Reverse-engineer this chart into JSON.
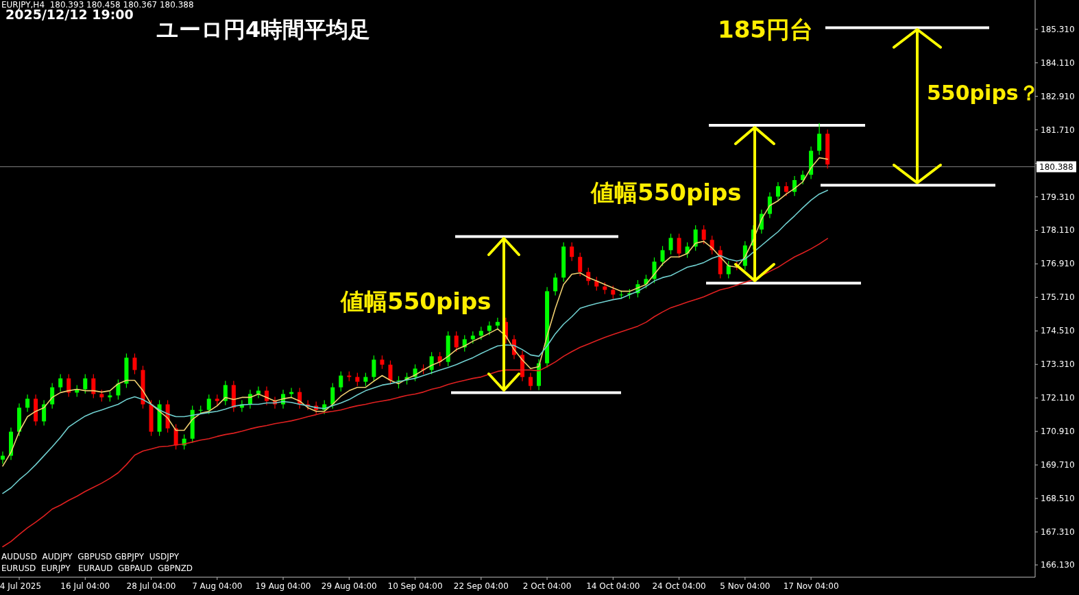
{
  "chart_data": {
    "type": "candlestick",
    "title": "ユーロ円4時間平均足",
    "categories": [
      null,
      null,
      "4 Jul 2025",
      null,
      null,
      null,
      null,
      null,
      null,
      null,
      "16 Jul 04:00",
      null,
      null,
      null,
      null,
      null,
      null,
      null,
      "28 Jul 04:00",
      null,
      null,
      null,
      null,
      null,
      null,
      null,
      "7 Aug 04:00",
      null,
      null,
      null,
      null,
      null,
      null,
      null,
      "19 Aug 04:00",
      null,
      null,
      null,
      null,
      null,
      null,
      null,
      "29 Aug 04:00",
      null,
      null,
      null,
      null,
      null,
      null,
      null,
      "10 Sep 04:00",
      null,
      null,
      null,
      null,
      null,
      null,
      null,
      "22 Sep 04:00",
      null,
      null,
      null,
      null,
      null,
      null,
      null,
      "2 Oct 04:00",
      null,
      null,
      null,
      null,
      null,
      null,
      null,
      "14 Oct 04:00",
      null,
      null,
      null,
      null,
      null,
      null,
      null,
      "24 Oct 04:00",
      null,
      null,
      null,
      null,
      null,
      null,
      null,
      "5 Nov 04:00",
      null,
      null,
      null,
      null,
      null,
      null,
      null,
      "17 Nov 04:00",
      null,
      null,
      null,
      null,
      null,
      null,
      null,
      null,
      null,
      null,
      null,
      null,
      null,
      null,
      null,
      null,
      null,
      null,
      null,
      null,
      null,
      null,
      null,
      null,
      null,
      null
    ],
    "ohlc": [
      [
        169.9,
        170.19,
        169.75,
        170.04
      ],
      [
        170.04,
        171.05,
        169.89,
        170.9
      ],
      [
        170.9,
        171.91,
        170.75,
        171.76
      ],
      [
        171.76,
        172.23,
        171.61,
        172.08
      ],
      [
        172.08,
        172.23,
        171.12,
        171.27
      ],
      [
        171.27,
        172.03,
        171.12,
        171.88
      ],
      [
        171.88,
        172.64,
        171.73,
        172.49
      ],
      [
        172.49,
        172.96,
        172.34,
        172.81
      ],
      [
        172.81,
        172.96,
        172.15,
        172.3
      ],
      [
        172.3,
        172.57,
        172.15,
        172.42
      ],
      [
        172.42,
        172.96,
        172.27,
        172.81
      ],
      [
        172.81,
        172.96,
        172.1,
        172.25
      ],
      [
        172.25,
        172.4,
        171.98,
        172.13
      ],
      [
        172.13,
        172.35,
        171.98,
        172.2
      ],
      [
        172.2,
        172.77,
        172.05,
        172.62
      ],
      [
        172.62,
        173.7,
        172.47,
        173.55
      ],
      [
        173.55,
        173.7,
        172.96,
        173.11
      ],
      [
        173.11,
        173.26,
        171.73,
        171.88
      ],
      [
        171.88,
        172.03,
        170.75,
        170.9
      ],
      [
        170.9,
        172.03,
        170.75,
        171.88
      ],
      [
        171.88,
        172.03,
        170.87,
        171.02
      ],
      [
        171.02,
        171.17,
        170.26,
        170.41
      ],
      [
        170.41,
        170.8,
        170.26,
        170.65
      ],
      [
        170.65,
        171.83,
        170.5,
        171.68
      ],
      [
        171.68,
        171.83,
        171.53,
        171.68
      ],
      [
        171.68,
        172.23,
        171.53,
        172.08
      ],
      [
        172.08,
        172.23,
        171.85,
        172.0
      ],
      [
        172.0,
        172.72,
        171.85,
        172.57
      ],
      [
        172.57,
        172.72,
        171.61,
        171.76
      ],
      [
        171.76,
        172.03,
        171.61,
        171.88
      ],
      [
        171.88,
        172.4,
        171.73,
        172.25
      ],
      [
        172.25,
        172.52,
        172.1,
        172.37
      ],
      [
        172.37,
        172.52,
        171.85,
        172.0
      ],
      [
        172.0,
        172.15,
        171.73,
        171.88
      ],
      [
        171.88,
        172.4,
        171.73,
        172.25
      ],
      [
        172.25,
        172.47,
        172.1,
        172.32
      ],
      [
        172.32,
        172.47,
        171.73,
        171.88
      ],
      [
        171.88,
        172.03,
        171.68,
        171.83
      ],
      [
        171.83,
        171.98,
        171.53,
        171.68
      ],
      [
        171.68,
        172.03,
        171.53,
        171.88
      ],
      [
        171.88,
        172.64,
        171.73,
        172.49
      ],
      [
        172.49,
        173.06,
        172.34,
        172.91
      ],
      [
        172.91,
        173.06,
        172.71,
        172.86
      ],
      [
        172.86,
        173.01,
        172.54,
        172.69
      ],
      [
        172.69,
        173.01,
        172.54,
        172.86
      ],
      [
        172.86,
        173.63,
        172.71,
        173.48
      ],
      [
        173.48,
        173.63,
        173.15,
        173.3
      ],
      [
        173.3,
        173.45,
        172.59,
        172.74
      ],
      [
        172.74,
        172.89,
        172.45,
        172.74
      ],
      [
        172.74,
        173.01,
        172.59,
        172.86
      ],
      [
        172.86,
        173.31,
        172.71,
        173.16
      ],
      [
        173.16,
        173.31,
        172.96,
        173.11
      ],
      [
        173.11,
        173.75,
        172.96,
        173.6
      ],
      [
        173.6,
        173.75,
        173.25,
        173.4
      ],
      [
        173.4,
        174.49,
        173.25,
        174.34
      ],
      [
        174.34,
        174.49,
        173.77,
        173.92
      ],
      [
        173.92,
        174.36,
        173.77,
        174.21
      ],
      [
        174.21,
        174.49,
        174.06,
        174.34
      ],
      [
        174.34,
        174.66,
        174.19,
        174.51
      ],
      [
        174.51,
        174.85,
        174.36,
        174.7
      ],
      [
        174.7,
        174.98,
        174.55,
        174.83
      ],
      [
        174.83,
        174.98,
        174.06,
        174.21
      ],
      [
        174.21,
        174.36,
        173.5,
        173.65
      ],
      [
        173.65,
        173.8,
        172.71,
        172.86
      ],
      [
        172.86,
        173.01,
        172.39,
        172.54
      ],
      [
        172.54,
        173.5,
        172.39,
        173.35
      ],
      [
        173.35,
        176.08,
        173.2,
        175.93
      ],
      [
        175.93,
        176.57,
        175.78,
        176.42
      ],
      [
        176.42,
        177.68,
        176.27,
        177.53
      ],
      [
        177.53,
        177.68,
        177.01,
        177.16
      ],
      [
        177.16,
        177.31,
        176.47,
        176.62
      ],
      [
        176.62,
        176.77,
        176.15,
        176.3
      ],
      [
        176.3,
        176.45,
        175.95,
        176.1
      ],
      [
        176.1,
        176.25,
        175.83,
        175.98
      ],
      [
        175.98,
        176.13,
        175.66,
        175.81
      ],
      [
        175.81,
        175.96,
        175.66,
        175.81
      ],
      [
        175.81,
        176.01,
        175.66,
        175.86
      ],
      [
        175.86,
        176.33,
        175.71,
        176.18
      ],
      [
        176.18,
        176.52,
        176.03,
        176.37
      ],
      [
        176.37,
        177.14,
        176.22,
        176.99
      ],
      [
        176.99,
        177.55,
        176.84,
        177.4
      ],
      [
        177.4,
        177.99,
        177.25,
        177.84
      ],
      [
        177.84,
        177.99,
        177.13,
        177.28
      ],
      [
        177.28,
        177.68,
        177.13,
        177.53
      ],
      [
        177.53,
        178.29,
        177.38,
        178.14
      ],
      [
        178.14,
        178.29,
        177.62,
        177.77
      ],
      [
        177.77,
        177.92,
        177.25,
        177.4
      ],
      [
        177.4,
        177.55,
        176.39,
        176.54
      ],
      [
        176.54,
        177.01,
        176.39,
        176.86
      ],
      [
        176.86,
        177.01,
        176.69,
        176.84
      ],
      [
        176.84,
        177.72,
        176.69,
        177.57
      ],
      [
        177.57,
        178.29,
        177.42,
        178.14
      ],
      [
        178.14,
        178.85,
        177.99,
        178.7
      ],
      [
        178.7,
        179.47,
        178.55,
        179.32
      ],
      [
        179.32,
        179.84,
        179.17,
        179.69
      ],
      [
        179.69,
        179.84,
        179.34,
        179.49
      ],
      [
        179.49,
        180.06,
        179.34,
        179.91
      ],
      [
        179.91,
        180.25,
        179.76,
        180.1
      ],
      [
        180.1,
        181.11,
        179.95,
        180.96
      ],
      [
        180.96,
        181.95,
        180.81,
        181.57
      ],
      [
        181.57,
        181.72,
        180.32,
        180.47
      ],
      null,
      null,
      null,
      null,
      null,
      null,
      null,
      null,
      null,
      null,
      null,
      null,
      null,
      null,
      null,
      null,
      null,
      null,
      null,
      null,
      null,
      null,
      null,
      null
    ],
    "colors": [
      "#00ff00",
      "#00ff00",
      "#00ff00",
      "#00ff00",
      "#ff0000",
      "#00ff00",
      "#00ff00",
      "#00ff00",
      "#ff0000",
      "#00ff00",
      "#00ff00",
      "#ff0000",
      "#ff0000",
      "#00ff00",
      "#00ff00",
      "#00ff00",
      "#ff0000",
      "#ff0000",
      "#ff0000",
      "#00ff00",
      "#ff0000",
      "#ff0000",
      "#00ff00",
      "#00ff00",
      "#00ff00",
      "#00ff00",
      "#ff0000",
      "#00ff00",
      "#ff0000",
      "#00ff00",
      "#00ff00",
      "#00ff00",
      "#ff0000",
      "#ff0000",
      "#00ff00",
      "#00ff00",
      "#ff0000",
      "#ff0000",
      "#ff0000",
      "#00ff00",
      "#00ff00",
      "#00ff00",
      "#ff0000",
      "#ff0000",
      "#00ff00",
      "#00ff00",
      "#ff0000",
      "#ff0000",
      "#00ff00",
      "#00ff00",
      "#00ff00",
      "#ff0000",
      "#00ff00",
      "#ff0000",
      "#00ff00",
      "#ff0000",
      "#00ff00",
      "#00ff00",
      "#00ff00",
      "#00ff00",
      "#00ff00",
      "#ff0000",
      "#ff0000",
      "#ff0000",
      "#ff0000",
      "#00ff00",
      "#00ff00",
      "#00ff00",
      "#00ff00",
      "#ff0000",
      "#ff0000",
      "#ff0000",
      "#ff0000",
      "#ff0000",
      "#ff0000",
      "#00ff00",
      "#00ff00",
      "#00ff00",
      "#00ff00",
      "#00ff00",
      "#00ff00",
      "#00ff00",
      "#ff0000",
      "#00ff00",
      "#00ff00",
      "#ff0000",
      "#ff0000",
      "#ff0000",
      "#00ff00",
      "#ff0000",
      "#00ff00",
      "#00ff00",
      "#00ff00",
      "#00ff00",
      "#00ff00",
      "#ff0000",
      "#00ff00",
      "#00ff00",
      "#00ff00",
      "#00ff00",
      "#ff0000",
      null,
      null,
      null,
      null,
      null,
      null,
      null,
      null,
      null,
      null,
      null,
      null,
      null,
      null,
      null,
      null,
      null,
      null,
      null,
      null,
      null,
      null,
      null,
      null
    ],
    "series": [
      {
        "type": "line",
        "color": "#f0d070",
        "values": [
          169.67,
          170.16,
          170.9,
          171.44,
          171.63,
          171.76,
          172.13,
          172.3,
          172.37,
          172.42,
          172.37,
          172.37,
          172.32,
          172.37,
          172.62,
          172.74,
          172.74,
          172.37,
          171.88,
          171.63,
          171.39,
          170.95,
          170.95,
          171.34,
          171.56,
          171.63,
          171.83,
          172.13,
          172.05,
          172.13,
          172.13,
          172.25,
          172.13,
          172.0,
          172.08,
          172.13,
          172.0,
          171.76,
          171.63,
          171.63,
          171.88,
          172.17,
          172.37,
          172.49,
          172.49,
          172.71,
          172.91,
          172.74,
          172.62,
          172.79,
          172.93,
          173.11,
          173.28,
          173.4,
          173.6,
          173.84,
          173.97,
          174.14,
          174.28,
          174.43,
          174.58,
          174.33,
          173.84,
          173.47,
          173.16,
          173.23,
          174.33,
          175.32,
          176.17,
          176.54,
          176.59,
          176.42,
          176.3,
          176.17,
          176.05,
          175.93,
          175.93,
          176.05,
          176.17,
          176.54,
          176.91,
          177.16,
          177.16,
          177.28,
          177.65,
          177.72,
          177.48,
          177.16,
          176.84,
          176.79,
          177.16,
          177.77,
          178.51,
          179.0,
          179.17,
          179.41,
          179.61,
          179.85,
          180.35,
          180.71,
          180.66,
          null,
          null,
          null,
          null,
          null,
          null,
          null,
          null,
          null,
          null,
          null,
          null,
          null,
          null,
          null,
          null,
          null,
          null,
          null,
          null,
          null,
          null,
          null,
          null
        ]
      },
      {
        "type": "line",
        "color": "#70d0d0",
        "values": [
          168.69,
          168.89,
          169.18,
          169.43,
          169.72,
          170.04,
          170.36,
          170.7,
          171.07,
          171.27,
          171.46,
          171.59,
          171.68,
          171.78,
          171.88,
          172.05,
          172.15,
          172.05,
          171.88,
          171.68,
          171.54,
          171.44,
          171.44,
          171.49,
          171.54,
          171.59,
          171.63,
          171.71,
          171.81,
          171.86,
          171.88,
          171.88,
          171.93,
          171.93,
          171.98,
          171.95,
          171.88,
          171.83,
          171.76,
          171.73,
          171.83,
          171.93,
          172.05,
          172.22,
          172.37,
          172.47,
          172.57,
          172.62,
          172.69,
          172.76,
          172.81,
          172.91,
          173.01,
          173.11,
          173.2,
          173.3,
          173.43,
          173.55,
          173.7,
          173.84,
          173.97,
          174.01,
          173.99,
          173.84,
          173.65,
          173.6,
          173.97,
          174.41,
          174.75,
          175.02,
          175.32,
          175.41,
          175.49,
          175.56,
          175.63,
          175.68,
          175.81,
          175.93,
          176.1,
          176.3,
          176.42,
          176.49,
          176.64,
          176.79,
          176.86,
          176.96,
          177.11,
          177.21,
          177.08,
          177.01,
          177.08,
          177.33,
          177.57,
          177.82,
          178.06,
          178.36,
          178.63,
          178.92,
          179.19,
          179.41,
          179.54,
          null,
          null,
          null,
          null,
          null,
          null,
          null,
          null,
          null,
          null,
          null,
          null,
          null,
          null,
          null,
          null,
          null,
          null,
          null,
          null,
          null,
          null,
          null,
          null
        ]
      },
      {
        "type": "line",
        "color": "#e02020",
        "values": [
          166.78,
          166.97,
          167.22,
          167.46,
          167.66,
          167.88,
          168.13,
          168.27,
          168.44,
          168.59,
          168.76,
          168.91,
          169.06,
          169.23,
          169.43,
          169.72,
          170.06,
          170.21,
          170.28,
          170.36,
          170.38,
          170.43,
          170.46,
          170.53,
          170.6,
          170.65,
          170.73,
          170.8,
          170.85,
          170.92,
          171.0,
          171.07,
          171.12,
          171.19,
          171.24,
          171.29,
          171.36,
          171.44,
          171.51,
          171.59,
          171.63,
          171.68,
          171.76,
          171.83,
          171.88,
          171.95,
          172.0,
          172.05,
          172.13,
          172.2,
          172.25,
          172.32,
          172.42,
          172.49,
          172.59,
          172.67,
          172.74,
          172.81,
          172.86,
          172.96,
          173.06,
          173.11,
          173.11,
          173.11,
          173.11,
          173.08,
          173.23,
          173.4,
          173.6,
          173.77,
          173.92,
          174.04,
          174.16,
          174.28,
          174.38,
          174.48,
          174.58,
          174.68,
          174.82,
          175.02,
          175.19,
          175.34,
          175.44,
          175.54,
          175.63,
          175.73,
          175.86,
          175.98,
          176.05,
          176.15,
          176.25,
          176.35,
          176.49,
          176.64,
          176.79,
          176.98,
          177.16,
          177.3,
          177.45,
          177.62,
          177.82,
          null,
          null,
          null,
          null,
          null,
          null,
          null,
          null,
          null,
          null,
          null,
          null,
          null,
          null,
          null,
          null,
          null,
          null,
          null,
          null,
          null,
          null,
          null,
          null
        ]
      }
    ],
    "ylim": [
      165.69,
      186.36
    ],
    "yticks": [
      {
        "value": 166.13,
        "label": "166.130"
      },
      {
        "value": 167.31,
        "label": "167.310"
      },
      {
        "value": 168.51,
        "label": "168.510"
      },
      {
        "value": 169.71,
        "label": "169.710"
      },
      {
        "value": 170.91,
        "label": "170.910"
      },
      {
        "value": 172.11,
        "label": "172.110"
      },
      {
        "value": 173.31,
        "label": "173.310"
      },
      {
        "value": 174.51,
        "label": "174.510"
      },
      {
        "value": 175.71,
        "label": "175.710"
      },
      {
        "value": 176.91,
        "label": "176.910"
      },
      {
        "value": 178.11,
        "label": "178.110"
      },
      {
        "value": 179.31,
        "label": "179.310"
      },
      {
        "value": 180.51,
        "label": null
      },
      {
        "value": 181.71,
        "label": "181.710"
      },
      {
        "value": 182.91,
        "label": "182.910"
      },
      {
        "value": 184.11,
        "label": "184.110"
      },
      {
        "value": 185.31,
        "label": "185.310"
      }
    ],
    "ref_lines": [
      {
        "axis": "y",
        "value": 180.388,
        "label": "180.388",
        "color": "#808080"
      },
      {
        "axis": "y",
        "value": 177.89,
        "color": "#ffffff"
      },
      {
        "axis": "y",
        "value": 172.3,
        "color": "#ffffff"
      },
      {
        "axis": "y",
        "value": 181.87,
        "color": "#ffffff"
      },
      {
        "axis": "y",
        "value": 176.22,
        "color": "#ffffff"
      },
      {
        "axis": "y",
        "value": 185.37,
        "color": "#ffffff"
      },
      {
        "axis": "y",
        "value": 179.73,
        "color": "#ffffff"
      }
    ],
    "annotations": [
      "EURJPY,H4  180.393 180.458 180.367 180.388",
      "2025/12/12 19:00",
      "値幅550pips",
      "値幅550pips",
      "185円台",
      "550pips？",
      "AUDUSD  AUDJPY  GBPUSD GBPJPY  USDJPY",
      "EURUSD  EURJPY   EURAUD  GBPAUD  GBPNZD"
    ]
  }
}
